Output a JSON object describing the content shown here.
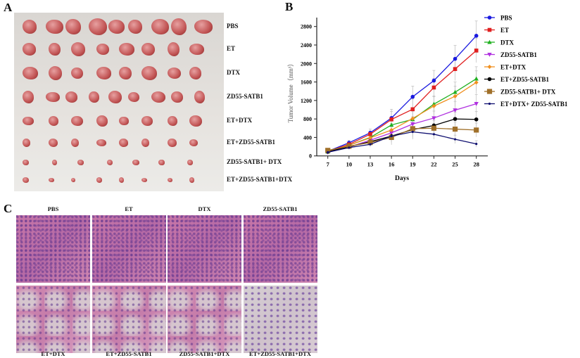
{
  "panels": {
    "a": "A",
    "b": "B",
    "c": "C"
  },
  "panel_a": {
    "row_labels": [
      "PBS",
      "ET",
      "DTX",
      "ZD55-SATB1",
      "ET+DTX",
      "ET+ZD55-SATB1",
      "ZD55-SATB1+ DTX",
      "ET+ZD55-SATB1+DTX"
    ],
    "tumor_counts": [
      9,
      8,
      8,
      9,
      8,
      8,
      7,
      8
    ]
  },
  "panel_c": {
    "top_labels": [
      "PBS",
      "ET",
      "DTX",
      "ZD55-SATB1"
    ],
    "bottom_labels": [
      "ET+DTX",
      "ET+ZD55-SATB1",
      "ZD55-SATB1+DTX",
      "ET+ZD55-SATB1+DTX"
    ]
  },
  "chart_data": {
    "type": "line",
    "xlabel": "Days",
    "ylabel": "Tumor Volume（mm³）",
    "x": [
      7,
      10,
      13,
      16,
      19,
      22,
      25,
      28
    ],
    "ylim": [
      0,
      2800
    ],
    "yticks": [
      0,
      400,
      800,
      1200,
      1600,
      2000,
      2400,
      2800
    ],
    "grid": false,
    "legend": "top-right",
    "series": [
      {
        "name": "PBS",
        "color": "#1a1adf",
        "marker": "circle",
        "values": [
          100,
          285,
          500,
          820,
          1280,
          1630,
          2100,
          2600
        ],
        "err": [
          30,
          50,
          80,
          190,
          230,
          220,
          290,
          320
        ]
      },
      {
        "name": "ET",
        "color": "#e02020",
        "marker": "square",
        "values": [
          100,
          250,
          470,
          790,
          1010,
          1480,
          1880,
          2280
        ],
        "err": [
          30,
          50,
          70,
          170,
          220,
          200,
          250,
          260
        ]
      },
      {
        "name": "DTX",
        "color": "#20b020",
        "marker": "triangle-up",
        "values": [
          90,
          230,
          400,
          670,
          790,
          1120,
          1380,
          1670
        ],
        "err": [
          25,
          45,
          70,
          150,
          180,
          180,
          220,
          260
        ]
      },
      {
        "name": "ZD55-SATB1",
        "color": "#b030e0",
        "marker": "triangle-down",
        "values": [
          80,
          190,
          340,
          500,
          690,
          820,
          990,
          1130
        ],
        "err": [
          25,
          40,
          60,
          130,
          160,
          150,
          190,
          200
        ]
      },
      {
        "name": "ET+DTX",
        "color": "#f09020",
        "marker": "diamond",
        "values": [
          100,
          230,
          390,
          560,
          810,
          1080,
          1290,
          1590
        ],
        "err": [
          25,
          45,
          60,
          140,
          180,
          200,
          220,
          250
        ]
      },
      {
        "name": "ET+ZD55-SATB1",
        "color": "#000000",
        "marker": "circle",
        "values": [
          90,
          200,
          310,
          430,
          570,
          660,
          800,
          790
        ],
        "err": [
          25,
          40,
          60,
          120,
          150,
          140,
          150,
          170
        ]
      },
      {
        "name": "ZD55-SATB1+ DTX",
        "color": "#a0702a",
        "marker": "square-large",
        "values": [
          120,
          210,
          290,
          400,
          590,
          600,
          580,
          560
        ],
        "err": [
          25,
          40,
          60,
          160,
          200,
          160,
          150,
          150
        ]
      },
      {
        "name": "ET+DTX+ ZD55-SATB1",
        "color": "#101070",
        "marker": "star",
        "values": [
          80,
          180,
          250,
          430,
          520,
          470,
          360,
          260
        ],
        "err": [
          20,
          35,
          60,
          140,
          160,
          110,
          90,
          70
        ]
      }
    ]
  }
}
